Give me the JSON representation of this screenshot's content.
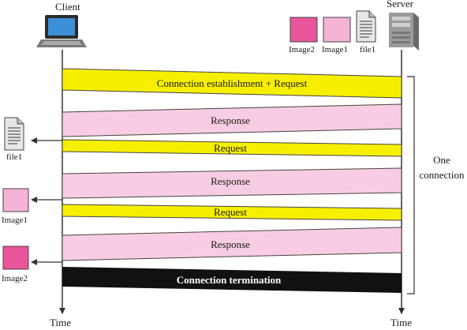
{
  "actors": {
    "client": "Client",
    "server": "Server"
  },
  "time_labels": {
    "client": "Time",
    "server": "Time"
  },
  "server_files": {
    "image2": "Image2",
    "image1": "Image1",
    "file1": "file1"
  },
  "messages": {
    "connect_request": "Connection establishment + Request",
    "response_1": "Response",
    "request_2": "Request",
    "response_2": "Response",
    "request_3": "Request",
    "response_3": "Response",
    "termination": "Connection termination"
  },
  "received": {
    "file1": "file1",
    "image1": "Image1",
    "image2": "Image2"
  },
  "brace_label": {
    "line1": "One",
    "line2": "connection"
  },
  "colors": {
    "request_yellow": "#f7ef00",
    "response_pink": "#f8cde3",
    "image1_pink": "#f5b4d6",
    "image2_magenta": "#e8559a",
    "termination_black": "#111111"
  }
}
